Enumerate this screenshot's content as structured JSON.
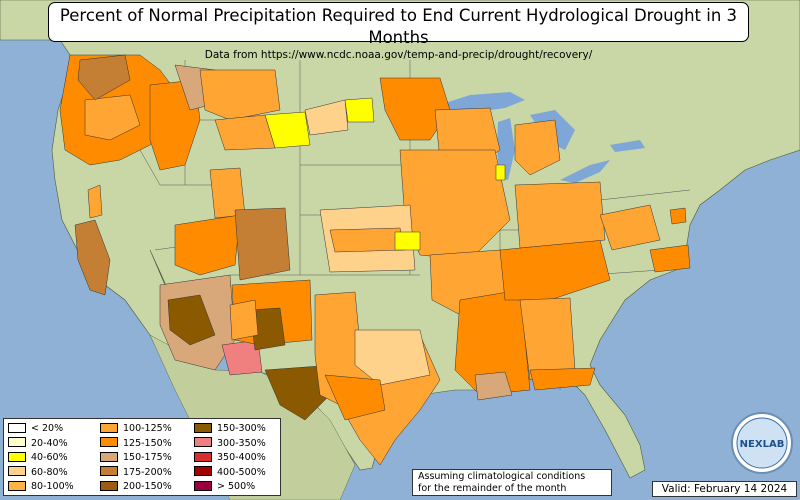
{
  "title": "Percent of Normal Precipitation Required to End Current Hydrological Drought in 3 Months",
  "subtitle": "Data from https://www.ncdc.noaa.gov/temp-and-precip/drought/recovery/",
  "note_line1": "Assuming climatological conditions",
  "note_line2": "for the remainder of the month",
  "valid": "Valid: February 14 2024",
  "logo_text": "NEXLAB",
  "legend": [
    {
      "label": "< 20%",
      "color": "#ffffff"
    },
    {
      "label": "20-40%",
      "color": "#ffffcc"
    },
    {
      "label": "40-60%",
      "color": "#ffff00"
    },
    {
      "label": "60-80%",
      "color": "#ffd28c"
    },
    {
      "label": "80-100%",
      "color": "#ffb347"
    },
    {
      "label": "100-125%",
      "color": "#ffa533"
    },
    {
      "label": "125-150%",
      "color": "#ff8c00"
    },
    {
      "label": "150-175%",
      "color": "#d9a87a"
    },
    {
      "label": "175-200%",
      "color": "#c47f34"
    },
    {
      "label": "200-150%",
      "color": "#9c5d10"
    },
    {
      "label": "150-300%",
      "color": "#8b5a00"
    },
    {
      "label": "300-350%",
      "color": "#f08080"
    },
    {
      "label": "350-400%",
      "color": "#d62f2f"
    },
    {
      "label": "400-500%",
      "color": "#a30000"
    },
    {
      "label": "> 500%",
      "color": "#9a0040"
    }
  ],
  "colors": {
    "ocean": "#8fb1d6",
    "land": "#c8d6a8",
    "lake": "#7ea6d6"
  }
}
